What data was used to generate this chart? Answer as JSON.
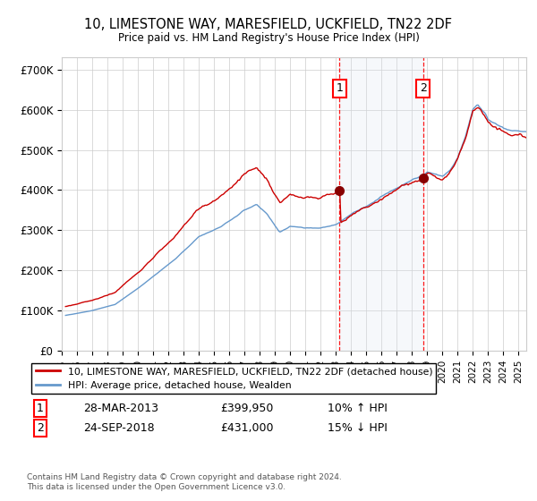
{
  "title": "10, LIMESTONE WAY, MARESFIELD, UCKFIELD, TN22 2DF",
  "subtitle": "Price paid vs. HM Land Registry's House Price Index (HPI)",
  "ylabel_ticks": [
    "£0",
    "£100K",
    "£200K",
    "£300K",
    "£400K",
    "£500K",
    "£600K",
    "£700K"
  ],
  "ytick_values": [
    0,
    100000,
    200000,
    300000,
    400000,
    500000,
    600000,
    700000
  ],
  "ylim": [
    0,
    730000
  ],
  "xlim_start": 1995.25,
  "xlim_end": 2025.5,
  "legend_line1": "10, LIMESTONE WAY, MARESFIELD, UCKFIELD, TN22 2DF (detached house)",
  "legend_line2": "HPI: Average price, detached house, Wealden",
  "label1_date": "28-MAR-2013",
  "label1_price": "£399,950",
  "label1_hpi": "10% ↑ HPI",
  "label2_date": "24-SEP-2018",
  "label2_price": "£431,000",
  "label2_hpi": "15% ↓ HPI",
  "footnote": "Contains HM Land Registry data © Crown copyright and database right 2024.\nThis data is licensed under the Open Government Licence v3.0.",
  "transaction1_x": 2013.24,
  "transaction1_y": 399950,
  "transaction2_x": 2018.73,
  "transaction2_y": 431000,
  "red_color": "#cc0000",
  "blue_color": "#6699cc",
  "shading_color": "#dce6f1",
  "grid_color": "#cccccc",
  "background_color": "#ffffff"
}
